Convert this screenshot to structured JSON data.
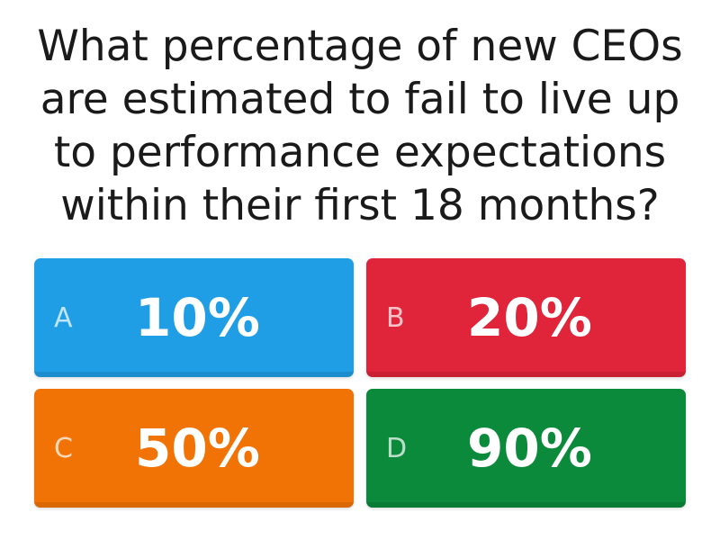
{
  "question": {
    "lines": [
      "What percentage of new CEOs",
      "are estimated to fail to live up",
      "to performance expectations",
      "within their first 18 months?"
    ]
  },
  "answers": [
    {
      "letter": "A",
      "value": "10%",
      "color": "#1f9ee6"
    },
    {
      "letter": "B",
      "value": "20%",
      "color": "#e0243a"
    },
    {
      "letter": "C",
      "value": "50%",
      "color": "#f27305"
    },
    {
      "letter": "D",
      "value": "90%",
      "color": "#0a8a3a"
    }
  ]
}
